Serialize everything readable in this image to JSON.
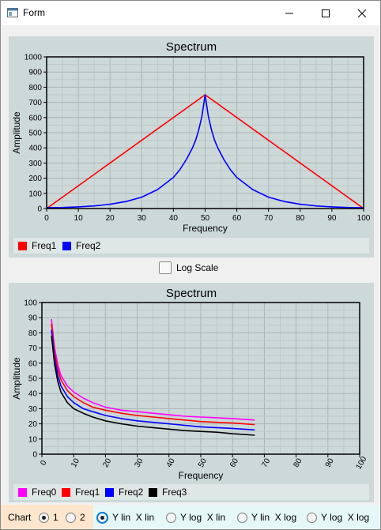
{
  "window": {
    "title": "Form"
  },
  "chart1": {
    "title": "Spectrum",
    "xlabel": "Frequency",
    "ylabel": "Amplitude",
    "xticks": [
      "0",
      "10",
      "20",
      "30",
      "40",
      "50",
      "60",
      "70",
      "80",
      "90",
      "100"
    ],
    "yticks": [
      "0",
      "100",
      "200",
      "300",
      "400",
      "500",
      "600",
      "700",
      "800",
      "900",
      "1000"
    ],
    "legend": [
      {
        "name": "Freq1",
        "color": "#ff0000"
      },
      {
        "name": "Freq2",
        "color": "#0000ff"
      }
    ]
  },
  "log_scale": {
    "label": "Log Scale",
    "checked": false
  },
  "chart2": {
    "title": "Spectrum",
    "xlabel": "Frequency",
    "ylabel": "Amplitude",
    "xticks": [
      "0",
      "10",
      "20",
      "30",
      "40",
      "50",
      "60",
      "70",
      "80",
      "90",
      "100"
    ],
    "yticks": [
      "0",
      "10",
      "20",
      "30",
      "40",
      "50",
      "60",
      "70",
      "80",
      "90",
      "100"
    ],
    "legend": [
      {
        "name": "Freq0",
        "color": "#ff00ff"
      },
      {
        "name": "Freq1",
        "color": "#ff0000"
      },
      {
        "name": "Freq2",
        "color": "#0000ff"
      },
      {
        "name": "Freq3",
        "color": "#000000"
      }
    ]
  },
  "controls": {
    "chart_label": "Chart",
    "chart_options": [
      "1",
      "2"
    ],
    "chart_selected": "1",
    "scale_options": [
      "Y lin  X lin",
      "Y log  X lin",
      "Y lin  X log",
      "Y log  X log"
    ],
    "scale_selected": "Y lin  X lin"
  },
  "chart_data": [
    {
      "type": "line",
      "title": "Spectrum",
      "xlabel": "Frequency",
      "ylabel": "Amplitude",
      "xlim": [
        0,
        100
      ],
      "ylim": [
        0,
        1000
      ],
      "grid": true,
      "legend_position": "bottom",
      "series": [
        {
          "name": "Freq1",
          "color": "#ff0000",
          "x": [
            0,
            50,
            100
          ],
          "y": [
            0,
            750,
            0
          ]
        },
        {
          "name": "Freq2",
          "color": "#0000ff",
          "x": [
            0,
            5,
            10,
            15,
            20,
            25,
            30,
            35,
            40,
            42,
            44,
            46,
            47,
            48,
            49,
            50,
            51,
            52,
            53,
            54,
            56,
            58,
            60,
            65,
            70,
            75,
            80,
            85,
            90,
            95,
            100
          ],
          "y": [
            5,
            7,
            11,
            17,
            28,
            46,
            75,
            125,
            205,
            255,
            320,
            400,
            450,
            520,
            610,
            750,
            610,
            520,
            450,
            400,
            320,
            255,
            205,
            125,
            75,
            46,
            28,
            17,
            11,
            7,
            5
          ]
        }
      ]
    },
    {
      "type": "line",
      "title": "Spectrum",
      "xlabel": "Frequency",
      "ylabel": "Amplitude",
      "xlim": [
        0,
        100
      ],
      "ylim": [
        0,
        100
      ],
      "grid": true,
      "legend_position": "bottom",
      "series": [
        {
          "name": "Freq0",
          "color": "#ff00ff",
          "x": [
            3,
            4,
            5,
            6,
            8,
            10,
            13,
            16,
            20,
            25,
            30,
            35,
            40,
            45,
            50,
            55,
            60,
            67
          ],
          "y": [
            89,
            70,
            59,
            52,
            45,
            41,
            37,
            34,
            31,
            29,
            28,
            27,
            26,
            25,
            24.5,
            24,
            23.5,
            22.5
          ]
        },
        {
          "name": "Freq1",
          "color": "#ff0000",
          "x": [
            3,
            4,
            5,
            6,
            8,
            10,
            13,
            16,
            20,
            25,
            30,
            35,
            40,
            45,
            50,
            55,
            60,
            67
          ],
          "y": [
            86,
            67,
            56,
            49,
            42,
            38,
            34,
            31,
            29,
            27,
            25.5,
            24.5,
            23.5,
            22.5,
            21.5,
            21,
            20.5,
            19.5
          ]
        },
        {
          "name": "Freq2",
          "color": "#0000ff",
          "x": [
            3,
            4,
            5,
            6,
            8,
            10,
            13,
            16,
            20,
            25,
            30,
            35,
            40,
            45,
            50,
            55,
            60,
            67
          ],
          "y": [
            82,
            63,
            52,
            45,
            38,
            34,
            30,
            28,
            25.5,
            23.5,
            22,
            21,
            20,
            19,
            18,
            17.5,
            17,
            16
          ]
        },
        {
          "name": "Freq3",
          "color": "#000000",
          "x": [
            3,
            4,
            5,
            6,
            8,
            10,
            13,
            16,
            20,
            25,
            30,
            35,
            40,
            45,
            50,
            55,
            60,
            67
          ],
          "y": [
            78,
            59,
            48,
            41,
            34,
            30,
            27,
            24.5,
            22,
            20,
            18.5,
            17.5,
            16.5,
            15.5,
            15,
            14.5,
            13.5,
            12.5
          ]
        }
      ]
    }
  ]
}
